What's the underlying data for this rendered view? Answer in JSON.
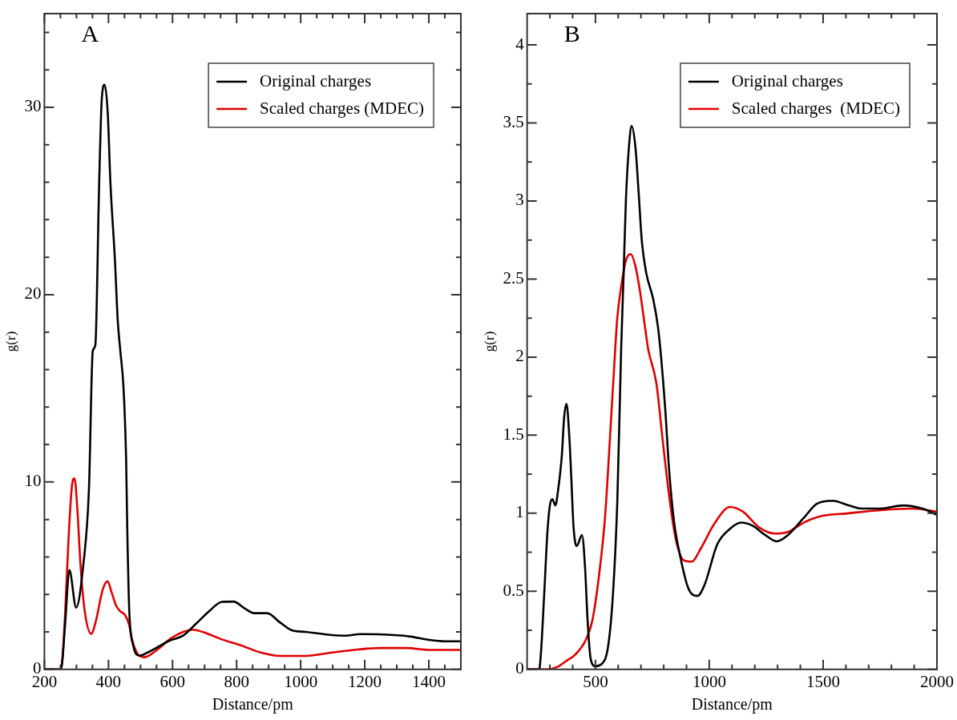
{
  "chart_data": [
    {
      "type": "line",
      "title": "A",
      "xlabel": "Distance/pm",
      "ylabel": "g(r)",
      "xlim": [
        200,
        1500
      ],
      "ylim": [
        0,
        35
      ],
      "xticks": [
        200,
        {
          "value": 250,
          "label": null
        },
        {
          "value": 300,
          "label": null
        },
        {
          "value": 350,
          "label": null
        },
        400,
        {
          "value": 450,
          "label": null
        },
        {
          "value": 500,
          "label": null
        },
        {
          "value": 550,
          "label": null
        },
        600,
        {
          "value": 650,
          "label": null
        },
        {
          "value": 700,
          "label": null
        },
        {
          "value": 750,
          "label": null
        },
        800,
        {
          "value": 850,
          "label": null
        },
        {
          "value": 900,
          "label": null
        },
        {
          "value": 950,
          "label": null
        },
        1000,
        {
          "value": 1050,
          "label": null
        },
        {
          "value": 1100,
          "label": null
        },
        {
          "value": 1150,
          "label": null
        },
        1200,
        {
          "value": 1250,
          "label": null
        },
        {
          "value": 1300,
          "label": null
        },
        {
          "value": 1350,
          "label": null
        },
        1400,
        {
          "value": 1450,
          "label": null
        }
      ],
      "yticks": [
        0,
        {
          "value": 2,
          "label": null
        },
        {
          "value": 4,
          "label": null
        },
        {
          "value": 6,
          "label": null
        },
        {
          "value": 8,
          "label": null
        },
        10,
        {
          "value": 12,
          "label": null
        },
        {
          "value": 14,
          "label": null
        },
        {
          "value": 16,
          "label": null
        },
        {
          "value": 18,
          "label": null
        },
        20,
        {
          "value": 22,
          "label": null
        },
        {
          "value": 24,
          "label": null
        },
        {
          "value": 26,
          "label": null
        },
        {
          "value": 28,
          "label": null
        },
        30,
        {
          "value": 32,
          "label": null
        },
        {
          "value": 34,
          "label": null
        }
      ],
      "legend": "top right",
      "marker": "none",
      "series": [
        {
          "name": "Original charges",
          "color": "#000000",
          "x": [
            200,
            250,
            255,
            265,
            278,
            299,
            321,
            339,
            351,
            359,
            371,
            379,
            388,
            398,
            406,
            420,
            429,
            437,
            447,
            455,
            459,
            465,
            477,
            497,
            522,
            593,
            633,
            674,
            714,
            754,
            790,
            825,
            855,
            895,
            936,
            971,
            1016,
            1097,
            1137,
            1188,
            1258,
            1339,
            1399,
            1450,
            1500
          ],
          "values": [
            0,
            0,
            0.3,
            2.5,
            5.3,
            3.3,
            5.5,
            9.6,
            17,
            17.3,
            26,
            30.4,
            31.2,
            29.6,
            26,
            21.9,
            18.6,
            17,
            15,
            11.3,
            7.2,
            3.1,
            1.3,
            0.73,
            0.9,
            1.55,
            1.8,
            2.45,
            3.1,
            3.6,
            3.62,
            3.26,
            3.0,
            3.0,
            2.5,
            2.1,
            2.0,
            1.83,
            1.8,
            1.88,
            1.86,
            1.76,
            1.58,
            1.5,
            1.5
          ]
        },
        {
          "name": "Scaled charges (MDEC)",
          "color": "#e00000",
          "x": [
            200,
            250,
            255,
            265,
            276,
            286,
            294,
            303,
            313,
            326,
            346,
            361,
            381,
            397,
            410,
            424,
            437,
            452,
            464,
            475,
            492,
            512,
            553,
            593,
            633,
            664,
            694,
            754,
            815,
            875,
            936,
            1016,
            1097,
            1178,
            1248,
            1329,
            1400,
            1500
          ],
          "values": [
            0,
            0,
            0.3,
            3.1,
            7.2,
            9.8,
            10.2,
            8.5,
            5.5,
            3.1,
            1.9,
            2.6,
            4.2,
            4.7,
            4.1,
            3.4,
            3.1,
            2.9,
            2.4,
            1.5,
            0.8,
            0.65,
            1.06,
            1.63,
            2.0,
            2.12,
            2.0,
            1.6,
            1.27,
            0.9,
            0.72,
            0.72,
            0.9,
            1.06,
            1.14,
            1.14,
            1.04,
            1.04
          ]
        }
      ]
    },
    {
      "type": "line",
      "title": "B",
      "xlabel": "Distance/pm",
      "ylabel": "g(r)",
      "xlim": [
        200,
        2000
      ],
      "ylim": [
        0,
        4.2
      ],
      "xticks": [
        {
          "value": 300,
          "label": null
        },
        {
          "value": 400,
          "label": null
        },
        500,
        {
          "value": 600,
          "label": null
        },
        {
          "value": 700,
          "label": null
        },
        {
          "value": 800,
          "label": null
        },
        {
          "value": 900,
          "label": null
        },
        1000,
        {
          "value": 1100,
          "label": null
        },
        {
          "value": 1200,
          "label": null
        },
        {
          "value": 1300,
          "label": null
        },
        {
          "value": 1400,
          "label": null
        },
        1500,
        {
          "value": 1600,
          "label": null
        },
        {
          "value": 1700,
          "label": null
        },
        {
          "value": 1800,
          "label": null
        },
        {
          "value": 1900,
          "label": null
        },
        2000
      ],
      "yticks": [
        0,
        {
          "value": 0.25,
          "label": null
        },
        0.5,
        {
          "value": 0.75,
          "label": null
        },
        1,
        {
          "value": 1.25,
          "label": null
        },
        1.5,
        {
          "value": 1.75,
          "label": null
        },
        2,
        {
          "value": 2.25,
          "label": null
        },
        2.5,
        {
          "value": 2.75,
          "label": null
        },
        3,
        {
          "value": 3.25,
          "label": null
        },
        3.5,
        {
          "value": 3.75,
          "label": null
        },
        4
      ],
      "legend": "top right",
      "marker": "none",
      "series": [
        {
          "name": "Original charges",
          "color": "#000000",
          "x": [
            200,
            253,
            261,
            275,
            289,
            300,
            311,
            324,
            338,
            352,
            363,
            373,
            385,
            394,
            404,
            418,
            441,
            455,
            465,
            479,
            500,
            528,
            556,
            577,
            596,
            613,
            624,
            634,
            648,
            659,
            676,
            690,
            704,
            723,
            754,
            775,
            789,
            807,
            824,
            845,
            873,
            908,
            948,
            979,
            1035,
            1091,
            1141,
            1190,
            1246,
            1296,
            1345,
            1415,
            1472,
            1542,
            1612,
            1669,
            1753,
            1852,
            1936,
            2000
          ],
          "values": [
            0,
            0,
            0.11,
            0.48,
            0.875,
            1.05,
            1.09,
            1.05,
            1.17,
            1.36,
            1.62,
            1.7,
            1.5,
            1.23,
            0.91,
            0.79,
            0.86,
            0.64,
            0.33,
            0.07,
            0.02,
            0.035,
            0.15,
            0.48,
            1.07,
            2.05,
            2.54,
            3.01,
            3.36,
            3.48,
            3.34,
            3.05,
            2.74,
            2.54,
            2.37,
            2.19,
            1.99,
            1.66,
            1.27,
            0.95,
            0.72,
            0.52,
            0.47,
            0.54,
            0.8,
            0.9,
            0.94,
            0.92,
            0.86,
            0.82,
            0.86,
            0.97,
            1.06,
            1.08,
            1.05,
            1.03,
            1.03,
            1.05,
            1.03,
            0.99
          ]
        },
        {
          "name": "Scaled charges  (MDEC)",
          "color": "#e00000",
          "x": [
            200,
            289,
            331,
            373,
            415,
            458,
            486,
            514,
            542,
            563,
            582,
            596,
            613,
            634,
            655,
            676,
            697,
            718,
            732,
            768,
            796,
            824,
            852,
            887,
            922,
            965,
            1021,
            1091,
            1148,
            1218,
            1289,
            1345,
            1415,
            1486,
            1612,
            1753,
            1894,
            2000
          ],
          "values": [
            0,
            0,
            0.015,
            0.055,
            0.1,
            0.19,
            0.31,
            0.58,
            0.97,
            1.46,
            1.93,
            2.25,
            2.45,
            2.62,
            2.66,
            2.58,
            2.41,
            2.19,
            2.05,
            1.83,
            1.46,
            1.11,
            0.84,
            0.7,
            0.69,
            0.78,
            0.93,
            1.04,
            1.01,
            0.91,
            0.87,
            0.88,
            0.94,
            0.98,
            1.0,
            1.02,
            1.03,
            1.01
          ]
        }
      ]
    }
  ]
}
